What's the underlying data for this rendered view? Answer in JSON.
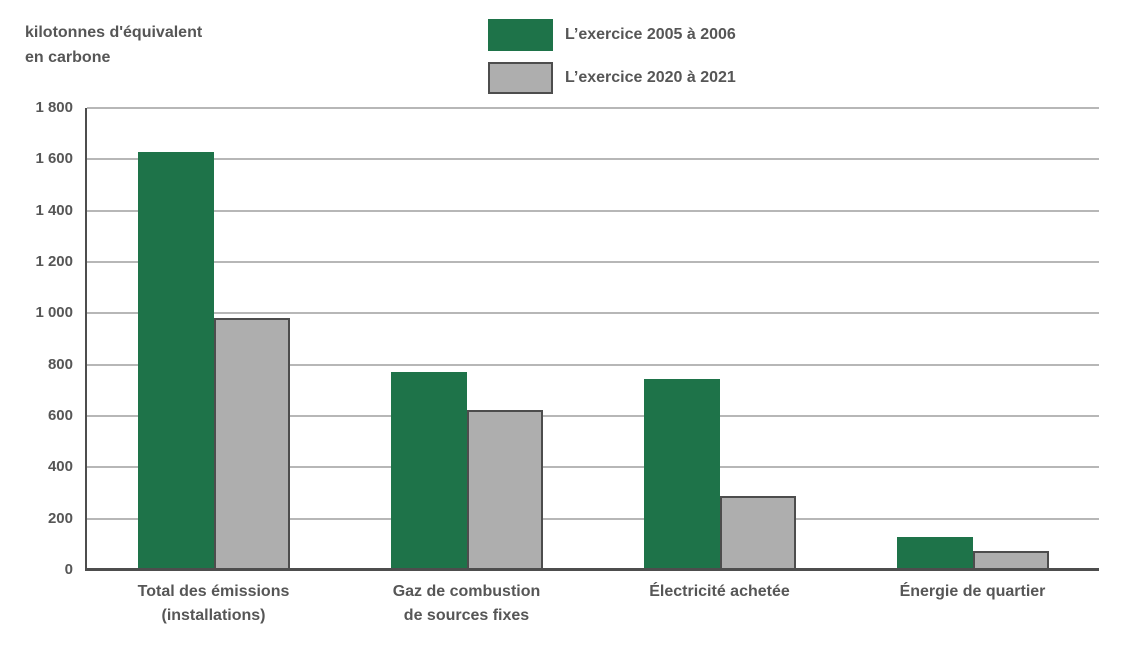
{
  "chart_data": {
    "type": "bar",
    "title_lines": [
      "kilotonnes d'équivalent",
      "en carbone"
    ],
    "categories": [
      [
        "Total des émissions",
        "(installations)"
      ],
      [
        "Gaz de combustion",
        "de sources fixes"
      ],
      [
        "Électricité achetée"
      ],
      [
        "Énergie de quartier"
      ]
    ],
    "series": [
      {
        "name": "L’exercice 2005 à 2006",
        "color": "#1e7349",
        "border": "",
        "values": [
          1630,
          770,
          745,
          130
        ]
      },
      {
        "name": "L’exercice 2020 à 2021",
        "color": "#aeaeae",
        "border": "#4d4d4d",
        "values": [
          980,
          625,
          290,
          75
        ]
      }
    ],
    "ylim": [
      0,
      1800
    ],
    "ytick_step": 200,
    "ytick_labels": [
      "0",
      "200",
      "400",
      "600",
      "800",
      "1 000",
      "1 200",
      "1 400",
      "1 600",
      "1 800"
    ],
    "grid": true,
    "legend_position": "top"
  },
  "colors": {
    "series_2005_2006": "#1e7349",
    "series_2020_2021": "#aeaeae",
    "bar_border": "#4d4d4d",
    "gridline": "#b7b7b7",
    "axis": "#4d4d4d",
    "text": "#565656"
  }
}
